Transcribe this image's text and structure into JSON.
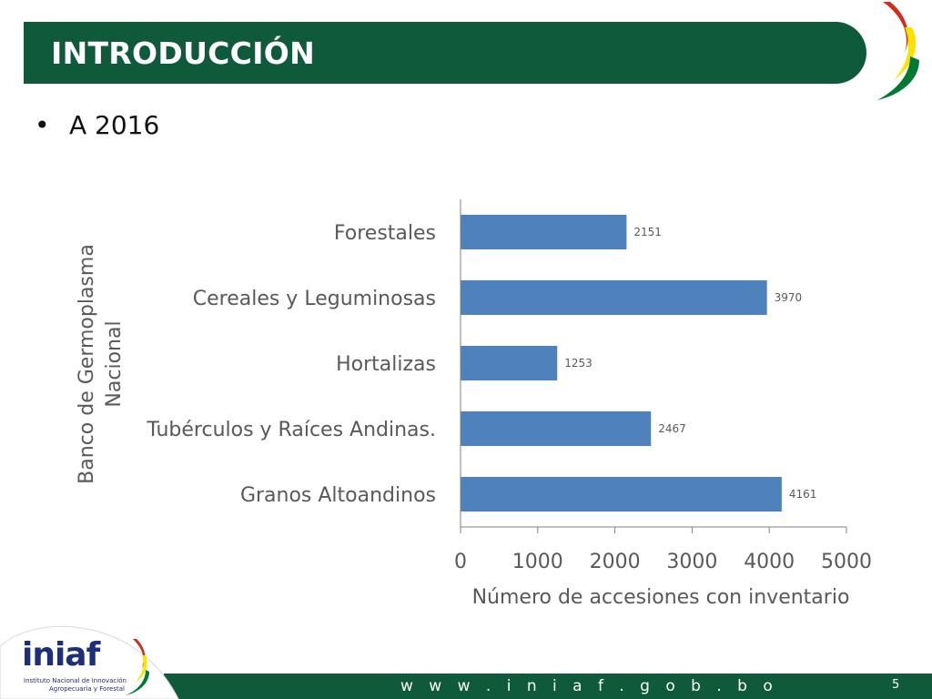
{
  "slide": {
    "title": "INTRODUCCIÓN",
    "bullet_symbol": "•",
    "bullet_text": "A 2016",
    "page_number": "5",
    "footer_url": "w w w . i n i a f . g o b . b o",
    "logo_brand": "iniaf",
    "logo_subtitle_line1": "Instituto Nacional de Innovación",
    "logo_subtitle_line2": "Agropecuaria y Forestal"
  },
  "colors": {
    "title_bar": "#0f5a3a",
    "bar": "#4f81bd",
    "axis": "#808080",
    "axis_text": "#595959",
    "logo_text": "#1d2f77",
    "flag_red": "#d52b1e",
    "flag_yellow": "#f9e300",
    "flag_green": "#007934"
  },
  "chart_data": {
    "type": "bar",
    "orientation": "horizontal",
    "categories": [
      "Forestales",
      "Cereales y Leguminosas",
      "Hortalizas",
      "Tubérculos y Raíces Andinas.",
      "Granos Altoandinos"
    ],
    "values": [
      2151,
      3970,
      1253,
      2467,
      4161
    ],
    "data_labels": [
      "2151",
      "3970",
      "1253",
      "2467",
      "4161"
    ],
    "xlabel": "Número de accesiones con inventario",
    "ylabel_lines": [
      "Banco de Germoplasma",
      "Nacional"
    ],
    "xlim": [
      0,
      5000
    ],
    "xticks": [
      0,
      1000,
      2000,
      3000,
      4000,
      5000
    ],
    "xtick_labels": [
      "0",
      "1000",
      "2000",
      "3000",
      "4000",
      "5000"
    ],
    "grid": false,
    "legend": "none"
  }
}
